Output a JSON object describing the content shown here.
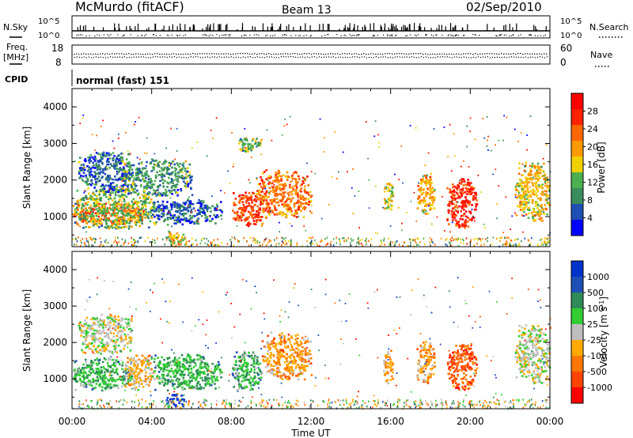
{
  "header": {
    "station": "McMurdo (fitACF)",
    "beam": "Beam 13",
    "date": "02/Sep/2010"
  },
  "strips": {
    "nsky_label": "N.Sky",
    "nsearch_label": "N.Search",
    "noise_ticks": [
      "10^5",
      "10^0"
    ],
    "freq_label_top": "Freq.",
    "freq_label_bottom": "[MHz]",
    "freq_ticks": [
      "18",
      "8"
    ],
    "nave_label": "Nave",
    "nave_ticks": [
      "60",
      "0"
    ],
    "cpid_label": "CPID",
    "cpid_value": "normal (fast) 151"
  },
  "colors": {
    "power": [
      "#0000ff",
      "#1f4fb4",
      "#3a8c5c",
      "#4caf50",
      "#f0d000",
      "#ff9900",
      "#ff6600",
      "#ff2200",
      "#ff0000"
    ],
    "velocity": [
      "#ff0000",
      "#ff4400",
      "#ff7700",
      "#ffaa00",
      "#bebebe",
      "#32cd32",
      "#2e8b57",
      "#1f4fb4",
      "#0033cc"
    ]
  },
  "chart_data": [
    {
      "type": "heatmap",
      "title": "",
      "quantity": "Power",
      "xlabel": "",
      "ylabel": "Slant Range [km]",
      "x_ticks": [
        "00:00",
        "04:00",
        "08:00",
        "12:00",
        "16:00",
        "20:00",
        "00:00"
      ],
      "y_ticks": [
        1000,
        2000,
        3000,
        4000
      ],
      "ylim": [
        180,
        4500
      ],
      "colorbar_label": "Power [dB]",
      "colorbar_ticks": [
        4,
        8,
        12,
        16,
        20,
        24,
        28
      ],
      "clim": [
        0,
        30
      ],
      "regions": [
        {
          "t0": 0.0,
          "t1": 3.6,
          "r0": 800,
          "r1": 1400,
          "value": 22
        },
        {
          "t0": 0.0,
          "t1": 4.2,
          "r0": 700,
          "r1": 1800,
          "value": 12
        },
        {
          "t0": 0.3,
          "t1": 3.0,
          "r0": 1700,
          "r1": 2800,
          "value": 6
        },
        {
          "t0": 2.5,
          "t1": 6.0,
          "r0": 1600,
          "r1": 2600,
          "value": 9
        },
        {
          "t0": 4.0,
          "t1": 7.5,
          "r0": 800,
          "r1": 1500,
          "value": 6
        },
        {
          "t0": 4.7,
          "t1": 5.6,
          "r0": 260,
          "r1": 650,
          "value": 16
        },
        {
          "t0": 8.0,
          "t1": 9.6,
          "r0": 750,
          "r1": 1700,
          "value": 24
        },
        {
          "t0": 9.2,
          "t1": 12.0,
          "r0": 1000,
          "r1": 2300,
          "value": 21
        },
        {
          "t0": 8.1,
          "t1": 9.5,
          "r0": 2800,
          "r1": 3200,
          "value": 12
        },
        {
          "t0": 15.6,
          "t1": 16.1,
          "r0": 1100,
          "r1": 2000,
          "value": 14
        },
        {
          "t0": 17.3,
          "t1": 18.2,
          "r0": 1100,
          "r1": 2200,
          "value": 18
        },
        {
          "t0": 18.8,
          "t1": 20.3,
          "r0": 700,
          "r1": 2100,
          "value": 26
        },
        {
          "t0": 22.2,
          "t1": 24.0,
          "r0": 900,
          "r1": 2500,
          "value": 16
        }
      ]
    },
    {
      "type": "heatmap",
      "title": "",
      "quantity": "Velocity",
      "xlabel": "Time UT",
      "ylabel": "Slant Range [km]",
      "x_ticks": [
        "00:00",
        "04:00",
        "08:00",
        "12:00",
        "16:00",
        "20:00",
        "00:00"
      ],
      "y_ticks": [
        1000,
        2000,
        3000,
        4000
      ],
      "ylim": [
        180,
        4500
      ],
      "colorbar_label": "Velocity [m s^-1]",
      "colorbar_ticks": [
        1000,
        500,
        100,
        25,
        -25,
        -100,
        -500,
        -1000
      ],
      "clim": [
        -1000,
        1000
      ],
      "regions": [
        {
          "t0": 0.0,
          "t1": 3.0,
          "r0": 700,
          "r1": 1600,
          "value": 300
        },
        {
          "t0": 2.6,
          "t1": 4.0,
          "r0": 700,
          "r1": 1700,
          "value": -200
        },
        {
          "t0": 0.3,
          "t1": 3.0,
          "r0": 1700,
          "r1": 2800,
          "value": 0
        },
        {
          "t0": 4.0,
          "t1": 7.5,
          "r0": 700,
          "r1": 1700,
          "value": 300
        },
        {
          "t0": 4.7,
          "t1": 5.6,
          "r0": 260,
          "r1": 650,
          "value": 1000
        },
        {
          "t0": 8.0,
          "t1": 9.5,
          "r0": 700,
          "r1": 1800,
          "value": 300
        },
        {
          "t0": 9.5,
          "t1": 12.0,
          "r0": 1000,
          "r1": 2300,
          "value": -300
        },
        {
          "t0": 15.6,
          "t1": 16.1,
          "r0": 900,
          "r1": 1800,
          "value": -300
        },
        {
          "t0": 17.3,
          "t1": 18.2,
          "r0": 900,
          "r1": 2100,
          "value": -300
        },
        {
          "t0": 18.8,
          "t1": 20.3,
          "r0": 700,
          "r1": 2000,
          "value": -600
        },
        {
          "t0": 22.2,
          "t1": 24.0,
          "r0": 900,
          "r1": 2500,
          "value": 0
        }
      ]
    }
  ]
}
